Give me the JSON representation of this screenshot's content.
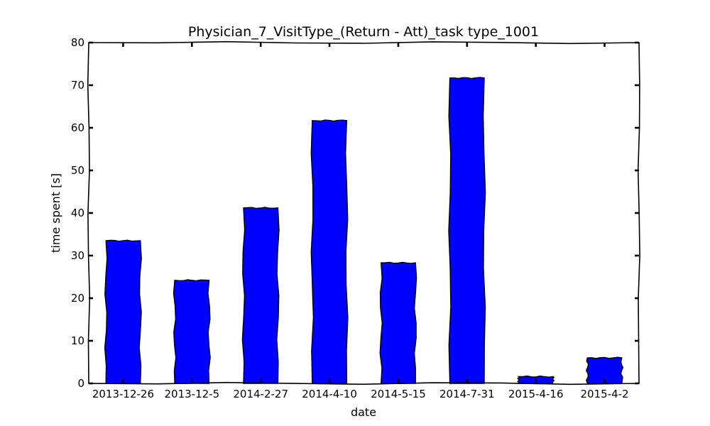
{
  "chart_data": {
    "type": "bar",
    "title": "Physician_7_VisitType_(Return - Att)_task type_1001",
    "xlabel": "date",
    "ylabel": "time spent [s]",
    "categories": [
      "2013-12-26",
      "2013-12-5",
      "2014-2-27",
      "2014-4-10",
      "2014-5-15",
      "2014-7-31",
      "2015-4-16",
      "2015-4-2"
    ],
    "values": [
      33.5,
      24.2,
      41.2,
      61.7,
      28.3,
      71.7,
      1.6,
      6.0
    ],
    "ylim": [
      0,
      80
    ],
    "yticks": [
      "0",
      "10",
      "20",
      "30",
      "40",
      "50",
      "60",
      "70",
      "80"
    ],
    "bar_color": "#0000ff",
    "grid": false,
    "legend": "none"
  }
}
